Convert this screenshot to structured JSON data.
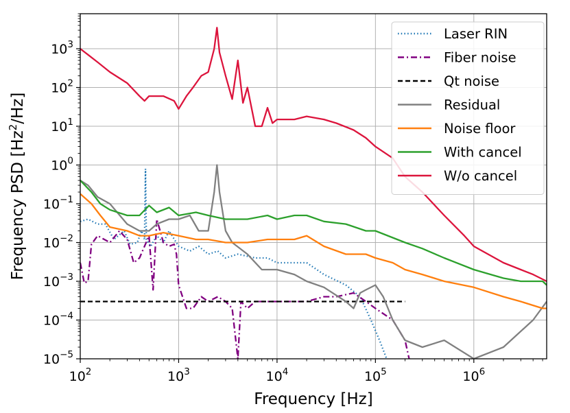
{
  "chart_data": {
    "type": "line",
    "xlabel": "Frequency [Hz]",
    "ylabel_prefix": "Frequency PSD [Hz",
    "ylabel_sup": "2",
    "ylabel_suffix": "/Hz]",
    "xscale": "log",
    "yscale": "log",
    "xlim": [
      100,
      5500000
    ],
    "ylim": [
      1e-05,
      8000
    ],
    "grid": true,
    "legend_position": "top-right",
    "xticks": [
      {
        "base": "10",
        "exp": "2",
        "value": 100
      },
      {
        "base": "10",
        "exp": "3",
        "value": 1000
      },
      {
        "base": "10",
        "exp": "4",
        "value": 10000
      },
      {
        "base": "10",
        "exp": "5",
        "value": 100000
      },
      {
        "base": "10",
        "exp": "6",
        "value": 1000000
      }
    ],
    "yticks": [
      {
        "base": "10",
        "exp": "−5",
        "value": 1e-05
      },
      {
        "base": "10",
        "exp": "−4",
        "value": 0.0001
      },
      {
        "base": "10",
        "exp": "−3",
        "value": 0.001
      },
      {
        "base": "10",
        "exp": "−2",
        "value": 0.01
      },
      {
        "base": "10",
        "exp": "−1",
        "value": 0.1
      },
      {
        "base": "10",
        "exp": "0",
        "value": 1
      },
      {
        "base": "10",
        "exp": "1",
        "value": 10
      },
      {
        "base": "10",
        "exp": "2",
        "value": 100
      },
      {
        "base": "10",
        "exp": "3",
        "value": 1000
      }
    ],
    "series": [
      {
        "name": "Laser RIN",
        "color": "#1f77b4",
        "dash": "dotted",
        "points": [
          [
            100,
            0.035
          ],
          [
            120,
            0.04
          ],
          [
            150,
            0.03
          ],
          [
            180,
            0.03
          ],
          [
            220,
            0.012
          ],
          [
            280,
            0.02
          ],
          [
            320,
            0.009
          ],
          [
            380,
            0.01
          ],
          [
            420,
            0.02
          ],
          [
            450,
            0.012
          ],
          [
            460,
            0.8
          ],
          [
            470,
            0.012
          ],
          [
            520,
            0.008
          ],
          [
            600,
            0.015
          ],
          [
            700,
            0.01
          ],
          [
            800,
            0.02
          ],
          [
            1000,
            0.008
          ],
          [
            1300,
            0.006
          ],
          [
            1600,
            0.008
          ],
          [
            2000,
            0.005
          ],
          [
            2500,
            0.006
          ],
          [
            3000,
            0.004
          ],
          [
            4000,
            0.005
          ],
          [
            6000,
            0.004
          ],
          [
            8000,
            0.004
          ],
          [
            10000,
            0.003
          ],
          [
            15000,
            0.003
          ],
          [
            20000,
            0.003
          ],
          [
            30000,
            0.0015
          ],
          [
            50000,
            0.0008
          ],
          [
            70000,
            0.0004
          ],
          [
            90000,
            0.0001
          ],
          [
            110000,
            3e-05
          ],
          [
            130000,
            1e-05
          ]
        ]
      },
      {
        "name": "Fiber noise",
        "color": "#800080",
        "dash": "dashdot",
        "points": [
          [
            100,
            0.003
          ],
          [
            110,
            0.0009
          ],
          [
            120,
            0.001
          ],
          [
            130,
            0.009
          ],
          [
            150,
            0.015
          ],
          [
            200,
            0.01
          ],
          [
            250,
            0.02
          ],
          [
            300,
            0.012
          ],
          [
            350,
            0.003
          ],
          [
            400,
            0.004
          ],
          [
            500,
            0.015
          ],
          [
            550,
            0.0006
          ],
          [
            600,
            0.04
          ],
          [
            700,
            0.01
          ],
          [
            800,
            0.008
          ],
          [
            900,
            0.009
          ],
          [
            950,
            0.005
          ],
          [
            1000,
            0.0008
          ],
          [
            1200,
            0.0002
          ],
          [
            1400,
            0.0002
          ],
          [
            1700,
            0.0004
          ],
          [
            2000,
            0.0003
          ],
          [
            2500,
            0.0004
          ],
          [
            3000,
            0.0003
          ],
          [
            3500,
            0.0002
          ],
          [
            4000,
            1e-05
          ],
          [
            4300,
            0.0003
          ],
          [
            5000,
            0.0002
          ],
          [
            6000,
            0.0003
          ],
          [
            8000,
            0.0003
          ],
          [
            10000,
            0.0003
          ],
          [
            15000,
            0.0003
          ],
          [
            20000,
            0.0003
          ],
          [
            30000,
            0.0004
          ],
          [
            40000,
            0.0004
          ],
          [
            60000,
            0.0005
          ],
          [
            80000,
            0.0003
          ],
          [
            100000,
            0.0002
          ],
          [
            150000,
            0.0001
          ],
          [
            200000,
            3e-05
          ],
          [
            220000,
            1e-05
          ]
        ]
      },
      {
        "name": "Qt noise",
        "color": "#000000",
        "dash": "dashed",
        "points": [
          [
            100,
            0.0003
          ],
          [
            200000,
            0.0003
          ]
        ]
      },
      {
        "name": "Residual",
        "color": "#808080",
        "dash": "solid",
        "points": [
          [
            100,
            0.4
          ],
          [
            120,
            0.3
          ],
          [
            150,
            0.15
          ],
          [
            200,
            0.1
          ],
          [
            300,
            0.03
          ],
          [
            400,
            0.02
          ],
          [
            500,
            0.02
          ],
          [
            600,
            0.03
          ],
          [
            800,
            0.04
          ],
          [
            1000,
            0.04
          ],
          [
            1300,
            0.05
          ],
          [
            1600,
            0.02
          ],
          [
            2000,
            0.02
          ],
          [
            2300,
            0.2
          ],
          [
            2450,
            1.0
          ],
          [
            2600,
            0.2
          ],
          [
            3000,
            0.02
          ],
          [
            3500,
            0.01
          ],
          [
            5000,
            0.005
          ],
          [
            7000,
            0.002
          ],
          [
            10000,
            0.002
          ],
          [
            15000,
            0.0015
          ],
          [
            20000,
            0.001
          ],
          [
            30000,
            0.0007
          ],
          [
            50000,
            0.0003
          ],
          [
            60000,
            0.0002
          ],
          [
            70000,
            0.0005
          ],
          [
            80000,
            0.0006
          ],
          [
            100000,
            0.0008
          ],
          [
            120000,
            0.0004
          ],
          [
            150000,
            0.0001
          ],
          [
            200000,
            3e-05
          ],
          [
            300000,
            2e-05
          ],
          [
            500000,
            3e-05
          ],
          [
            1000000,
            1e-05
          ],
          [
            2000000,
            2e-05
          ],
          [
            4000000,
            0.0001
          ],
          [
            5500000,
            0.0003
          ]
        ]
      },
      {
        "name": "Noise floor",
        "color": "#ff7f0e",
        "dash": "solid",
        "points": [
          [
            100,
            0.18
          ],
          [
            130,
            0.1
          ],
          [
            160,
            0.05
          ],
          [
            200,
            0.025
          ],
          [
            300,
            0.02
          ],
          [
            400,
            0.015
          ],
          [
            500,
            0.015
          ],
          [
            700,
            0.018
          ],
          [
            1000,
            0.015
          ],
          [
            1500,
            0.012
          ],
          [
            2000,
            0.012
          ],
          [
            3000,
            0.01
          ],
          [
            5000,
            0.01
          ],
          [
            8000,
            0.012
          ],
          [
            10000,
            0.012
          ],
          [
            15000,
            0.012
          ],
          [
            20000,
            0.015
          ],
          [
            30000,
            0.008
          ],
          [
            50000,
            0.005
          ],
          [
            80000,
            0.005
          ],
          [
            100000,
            0.004
          ],
          [
            150000,
            0.003
          ],
          [
            200000,
            0.002
          ],
          [
            300000,
            0.0015
          ],
          [
            500000,
            0.001
          ],
          [
            1000000,
            0.0007
          ],
          [
            2000000,
            0.0004
          ],
          [
            3000000,
            0.0003
          ],
          [
            5000000,
            0.0002
          ],
          [
            5500000,
            0.0002
          ]
        ]
      },
      {
        "name": "With cancel",
        "color": "#2ca02c",
        "dash": "solid",
        "points": [
          [
            100,
            0.4
          ],
          [
            130,
            0.2
          ],
          [
            160,
            0.1
          ],
          [
            200,
            0.07
          ],
          [
            300,
            0.05
          ],
          [
            400,
            0.05
          ],
          [
            500,
            0.09
          ],
          [
            600,
            0.06
          ],
          [
            800,
            0.08
          ],
          [
            1000,
            0.05
          ],
          [
            1500,
            0.06
          ],
          [
            2000,
            0.05
          ],
          [
            3000,
            0.04
          ],
          [
            5000,
            0.04
          ],
          [
            8000,
            0.05
          ],
          [
            10000,
            0.04
          ],
          [
            15000,
            0.05
          ],
          [
            20000,
            0.05
          ],
          [
            30000,
            0.035
          ],
          [
            50000,
            0.03
          ],
          [
            80000,
            0.02
          ],
          [
            100000,
            0.02
          ],
          [
            200000,
            0.01
          ],
          [
            300000,
            0.007
          ],
          [
            500000,
            0.004
          ],
          [
            1000000,
            0.002
          ],
          [
            2000000,
            0.0012
          ],
          [
            3000000,
            0.001
          ],
          [
            5000000,
            0.001
          ],
          [
            5500000,
            0.0008
          ]
        ]
      },
      {
        "name": "W/o cancel",
        "color": "#dc143c",
        "dash": "solid",
        "points": [
          [
            100,
            1000
          ],
          [
            150,
            450
          ],
          [
            200,
            250
          ],
          [
            300,
            130
          ],
          [
            400,
            60
          ],
          [
            450,
            45
          ],
          [
            500,
            60
          ],
          [
            700,
            60
          ],
          [
            900,
            45
          ],
          [
            1000,
            28
          ],
          [
            1200,
            60
          ],
          [
            1400,
            100
          ],
          [
            1700,
            200
          ],
          [
            2000,
            250
          ],
          [
            2300,
            1000
          ],
          [
            2450,
            3500
          ],
          [
            2600,
            800
          ],
          [
            3000,
            200
          ],
          [
            3500,
            50
          ],
          [
            4000,
            500
          ],
          [
            4500,
            40
          ],
          [
            5000,
            100
          ],
          [
            6000,
            10
          ],
          [
            7000,
            10
          ],
          [
            8000,
            30
          ],
          [
            9000,
            12
          ],
          [
            10000,
            15
          ],
          [
            15000,
            15
          ],
          [
            20000,
            18
          ],
          [
            30000,
            15
          ],
          [
            40000,
            12
          ],
          [
            60000,
            8
          ],
          [
            80000,
            5
          ],
          [
            100000,
            3
          ],
          [
            150000,
            1.5
          ],
          [
            200000,
            0.5
          ],
          [
            300000,
            0.2
          ],
          [
            500000,
            0.05
          ],
          [
            800000,
            0.015
          ],
          [
            1000000,
            0.008
          ],
          [
            2000000,
            0.003
          ],
          [
            3000000,
            0.002
          ],
          [
            4000000,
            0.0015
          ],
          [
            5500000,
            0.001
          ]
        ]
      }
    ]
  }
}
